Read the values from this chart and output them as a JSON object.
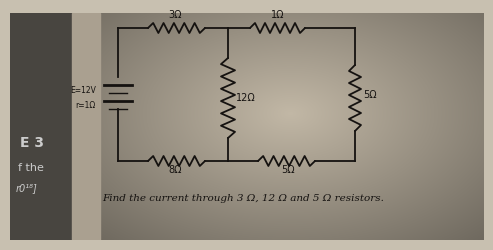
{
  "bg_color_center": "#c8c0b0",
  "bg_color_edge": "#7a7060",
  "left_panel_color1": "#5a5550",
  "left_panel_color2": "#3a3530",
  "circuit_line_color": "#151210",
  "text_color": "#151210",
  "fig_width": 4.74,
  "fig_height": 2.27,
  "bottom_text": "Find the current through 3 Ω, 12 Ω and 5 Ω resistors.",
  "left_label_1": "E=12V",
  "left_label_2": "r=1Ω",
  "label_3ohm": "3Ω",
  "label_1ohm": "1Ω",
  "label_12ohm": "12Ω",
  "label_5ohm_right": "5Ω",
  "label_8ohm": "8Ω",
  "label_5ohm_bottom": "5Ω",
  "side_text_color": "#cccccc",
  "side_label_e3": "E 3",
  "side_label_fthe": "f the",
  "side_label_r0": "r0¹⁸]"
}
